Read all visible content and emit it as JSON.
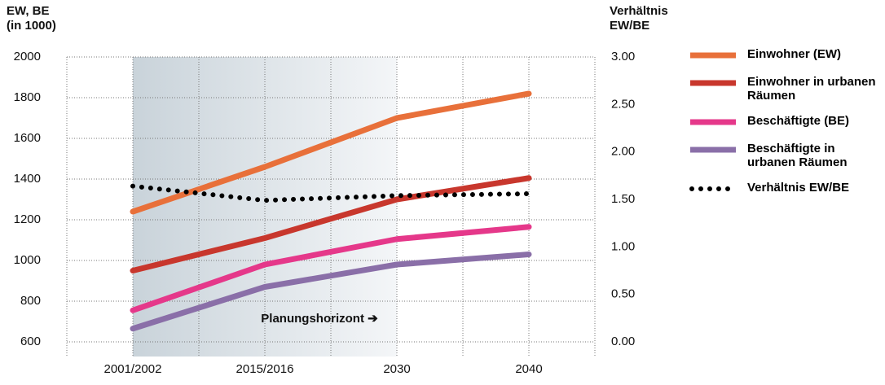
{
  "chart_data": {
    "type": "line",
    "y_title": [
      "EW, BE",
      "(in 1000)"
    ],
    "y2_title": [
      "Verhältnis",
      "EW/BE"
    ],
    "annotation": "Planungshorizont ➔",
    "categories": [
      "2001/2002",
      "2015/2016",
      "2030",
      "2040"
    ],
    "ylim": [
      600,
      2000
    ],
    "yticks": [
      600,
      800,
      1000,
      1200,
      1400,
      1600,
      1800,
      2000
    ],
    "y2lim": [
      0,
      3
    ],
    "y2ticks": [
      {
        "value": 0,
        "label": "0.00"
      },
      {
        "value": 0.5,
        "label": "0.50"
      },
      {
        "value": 1,
        "label": "1.00"
      },
      {
        "value": 1.5,
        "label": "1.50"
      },
      {
        "value": 2,
        "label": "2.00"
      },
      {
        "value": 2.5,
        "label": "2.50"
      },
      {
        "value": 3,
        "label": "3.00"
      }
    ],
    "grid": true,
    "series": [
      {
        "name": "Einwohner (EW)",
        "color": "#e8703a",
        "values": [
          1240,
          1460,
          1700,
          1820
        ]
      },
      {
        "name": "Einwohner in urbanen Räumen",
        "color": "#c8372d",
        "values": [
          950,
          1110,
          1300,
          1405
        ]
      },
      {
        "name": "Beschäftigte (BE)",
        "color": "#e5388a",
        "values": [
          755,
          980,
          1105,
          1165
        ]
      },
      {
        "name": "Beschäftigte in urbanen Räumen",
        "color": "#8a6fa8",
        "values": [
          665,
          870,
          980,
          1030
        ]
      },
      {
        "name": "Verhältnis EW/BE",
        "color": "#000000",
        "values": [
          1.64,
          1.49,
          1.54,
          1.56
        ],
        "axis": "y2",
        "dotted": true
      }
    ]
  }
}
